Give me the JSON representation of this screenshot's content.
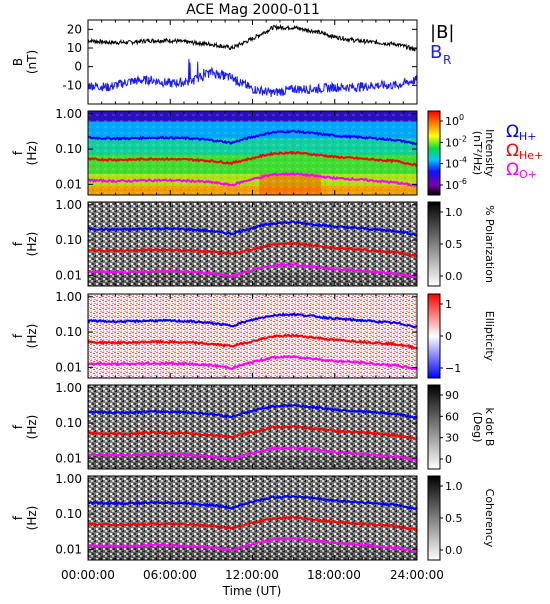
{
  "title": "ACE Mag 2000-011",
  "colors": {
    "B_total": "#000000",
    "B_R": "#1a1aff",
    "H_plus": "#0000ff",
    "He_plus": "#ff0000",
    "O_plus": "#ff00ff"
  },
  "x_axis": {
    "label": "Time (UT)",
    "ticks": [
      "00:00:00",
      "06:00:00",
      "12:00:00",
      "18:00:00",
      "24:00:00"
    ],
    "range_hours": [
      0,
      24
    ]
  },
  "panels": [
    {
      "id": "mag",
      "ylabel": "B",
      "yunit": "(nT)",
      "yticks": [
        "20",
        "10",
        "0",
        "-10"
      ],
      "legend": [
        {
          "text": "|B|",
          "color": "#000000"
        },
        {
          "text": "B",
          "sub": "R",
          "color": "#1a1aff"
        }
      ]
    },
    {
      "id": "intensity",
      "ylabel": "f",
      "yunit": "(Hz)",
      "yticks": [
        "1.00",
        "0.10",
        "0.01"
      ],
      "colormap": "rainbow",
      "colorbar": {
        "label1": "Intensity",
        "label2": "(nT²/Hz)",
        "ticks": [
          {
            "base": "10",
            "exp": "0"
          },
          {
            "base": "10",
            "exp": "-2"
          },
          {
            "base": "10",
            "exp": "-4"
          },
          {
            "base": "10",
            "exp": "-6"
          }
        ]
      },
      "gyro_labels": [
        {
          "symbol": "Ω",
          "sub": "H+",
          "color": "#0000ff"
        },
        {
          "symbol": "Ω",
          "sub": "He+",
          "color": "#ff0000"
        },
        {
          "symbol": "Ω",
          "sub": "O+",
          "color": "#ff00ff"
        }
      ]
    },
    {
      "id": "polarization",
      "ylabel": "f",
      "yunit": "(Hz)",
      "yticks": [
        "1.00",
        "0.10",
        "0.01"
      ],
      "colormap": "gray",
      "colorbar": {
        "label1": "% Polarization",
        "label2": "",
        "ticks": [
          {
            "base": "1.0"
          },
          {
            "base": "0.5"
          },
          {
            "base": "0.0"
          }
        ]
      }
    },
    {
      "id": "ellipticity",
      "ylabel": "f",
      "yunit": "(Hz)",
      "yticks": [
        "1.00",
        "0.10",
        "0.01"
      ],
      "colormap": "bwr",
      "colorbar": {
        "label1": "Ellipticity",
        "label2": "",
        "ticks": [
          {
            "base": "1"
          },
          {
            "base": "0"
          },
          {
            "base": "−1"
          }
        ]
      }
    },
    {
      "id": "kdotb",
      "ylabel": "f",
      "yunit": "(Hz)",
      "yticks": [
        "1.00",
        "0.10",
        "0.01"
      ],
      "colormap": "gray",
      "colorbar": {
        "label1": "k dot B",
        "label2": "(Deg)",
        "ticks": [
          {
            "base": "90"
          },
          {
            "base": "60"
          },
          {
            "base": "30"
          },
          {
            "base": "0"
          }
        ]
      }
    },
    {
      "id": "coherency",
      "ylabel": "f",
      "yunit": "(Hz)",
      "yticks": [
        "1.00",
        "0.10",
        "0.01"
      ],
      "colormap": "gray",
      "colorbar": {
        "label1": "Coherency",
        "label2": "",
        "ticks": [
          {
            "base": "1.0"
          },
          {
            "base": "0.5"
          },
          {
            "base": "0.0"
          }
        ]
      }
    }
  ],
  "chart_data": {
    "type": "line",
    "title": "ACE Mag 2000-011",
    "xlabel": "Time (UT)",
    "x_hours": [
      0,
      1.5,
      3,
      4.5,
      6,
      7.5,
      9,
      10.5,
      12,
      13.5,
      15,
      16.5,
      18,
      19.5,
      21,
      22.5,
      24
    ],
    "B_magnitude": {
      "ylabel": "B (nT)",
      "ylim": [
        -20,
        25
      ],
      "values": [
        14,
        13,
        13,
        14,
        14,
        13,
        12,
        10,
        15,
        21,
        21,
        19,
        16,
        14,
        13,
        12,
        9
      ]
    },
    "B_R": {
      "ylim": [
        -20,
        25
      ],
      "values": [
        -10,
        -11,
        -8,
        -7,
        -9,
        -8,
        -3,
        -6,
        -12,
        -14,
        -12,
        -12,
        -11,
        -11,
        -10,
        -10,
        -7
      ]
    },
    "gyrofrequencies_hz": {
      "H_plus": [
        0.21,
        0.2,
        0.2,
        0.21,
        0.21,
        0.2,
        0.18,
        0.15,
        0.22,
        0.3,
        0.32,
        0.28,
        0.24,
        0.22,
        0.2,
        0.18,
        0.14
      ],
      "He_plus": [
        0.052,
        0.05,
        0.05,
        0.053,
        0.052,
        0.05,
        0.046,
        0.04,
        0.055,
        0.075,
        0.08,
        0.07,
        0.06,
        0.055,
        0.05,
        0.045,
        0.035
      ],
      "O_plus": [
        0.013,
        0.0125,
        0.0125,
        0.013,
        0.013,
        0.0125,
        0.0115,
        0.0095,
        0.014,
        0.019,
        0.02,
        0.0175,
        0.015,
        0.014,
        0.0125,
        0.0112,
        0.009
      ]
    },
    "frequency_range_hz": [
      0.005,
      1.2
    ]
  }
}
